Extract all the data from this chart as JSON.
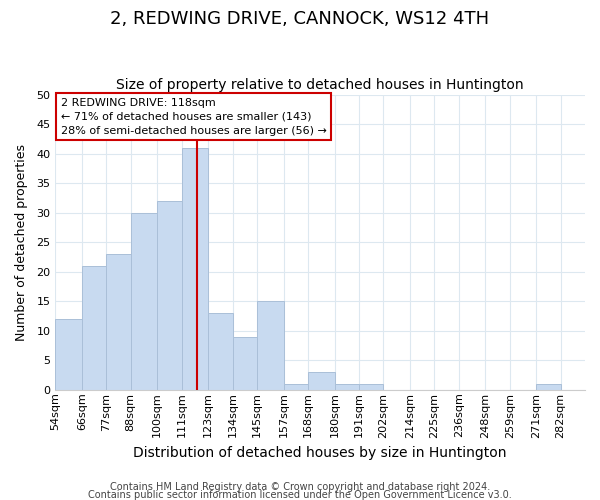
{
  "title": "2, REDWING DRIVE, CANNOCK, WS12 4TH",
  "subtitle": "Size of property relative to detached houses in Huntington",
  "xlabel": "Distribution of detached houses by size in Huntington",
  "ylabel": "Number of detached properties",
  "bin_edges": [
    54,
    66,
    77,
    88,
    100,
    111,
    123,
    134,
    145,
    157,
    168,
    180,
    191,
    202,
    214,
    225,
    236,
    248,
    259,
    271,
    282
  ],
  "bar_heights": [
    12,
    21,
    23,
    30,
    32,
    41,
    13,
    9,
    15,
    1,
    3,
    1,
    1,
    0,
    0,
    0,
    0,
    0,
    0,
    1
  ],
  "bar_color": "#c8daf0",
  "bar_edgecolor": "#aabfd8",
  "bar_linewidth": 0.7,
  "vline_x": 118,
  "vline_color": "#cc0000",
  "vline_linewidth": 1.5,
  "ylim": [
    0,
    50
  ],
  "yticks": [
    0,
    5,
    10,
    15,
    20,
    25,
    30,
    35,
    40,
    45,
    50
  ],
  "annotation_title": "2 REDWING DRIVE: 118sqm",
  "annotation_line1": "← 71% of detached houses are smaller (143)",
  "annotation_line2": "28% of semi-detached houses are larger (56) →",
  "footer_line1": "Contains HM Land Registry data © Crown copyright and database right 2024.",
  "footer_line2": "Contains public sector information licensed under the Open Government Licence v3.0.",
  "background_color": "#ffffff",
  "grid_color": "#dde8f0",
  "tick_label_fontsize": 8,
  "xlabel_fontsize": 10,
  "ylabel_fontsize": 9,
  "title_fontsize": 13,
  "subtitle_fontsize": 10,
  "footer_fontsize": 7
}
